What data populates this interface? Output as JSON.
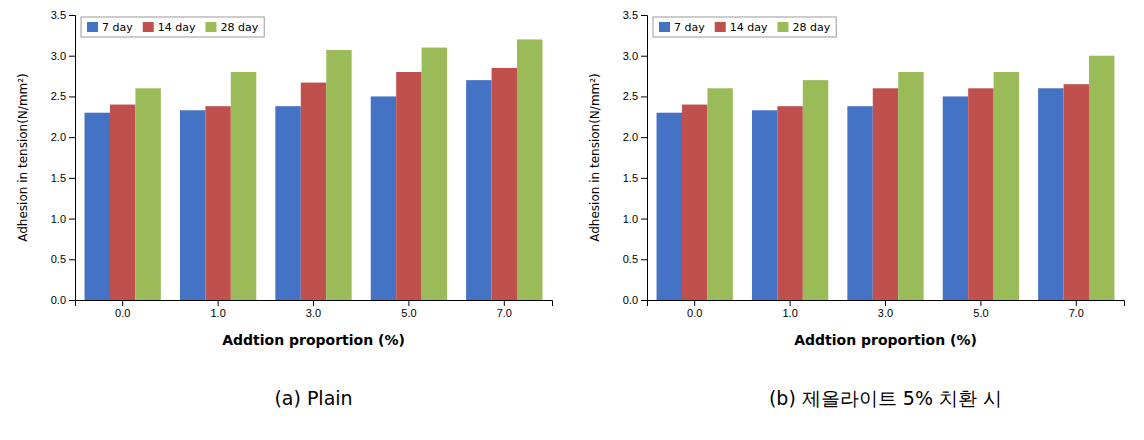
{
  "chart_data": [
    {
      "type": "bar",
      "title": "(a)  Plain",
      "xlabel": "Addtion proportion (%)",
      "ylabel": "Adhesion in tension(N/mm²)",
      "categories": [
        "0.0",
        "1.0",
        "3.0",
        "5.0",
        "7.0"
      ],
      "series": [
        {
          "name": "7 day",
          "color": "#4472c4",
          "values": [
            2.3,
            2.33,
            2.38,
            2.5,
            2.7
          ]
        },
        {
          "name": "14 day",
          "color": "#c0504d",
          "values": [
            2.4,
            2.38,
            2.67,
            2.8,
            2.85
          ]
        },
        {
          "name": "28 day",
          "color": "#9bbb59",
          "values": [
            2.6,
            2.8,
            3.07,
            3.1,
            3.2
          ]
        }
      ],
      "ylim": [
        0.0,
        3.5
      ],
      "yticks": [
        {
          "value": 0,
          "label": "0.0"
        },
        {
          "value": 0.5,
          "label": "0.5"
        },
        {
          "value": 1,
          "label": "1.0"
        },
        {
          "value": 1.5,
          "label": "1.5"
        },
        {
          "value": 2,
          "label": "2.0"
        },
        {
          "value": 2.5,
          "label": "2.5"
        },
        {
          "value": 3,
          "label": "3.0"
        },
        {
          "value": 3.5,
          "label": "3.5"
        }
      ],
      "grid": false,
      "legend": "upper left"
    },
    {
      "type": "bar",
      "title": "(b)  제올라이트 5%  치환  시",
      "xlabel": "Addtion proportion (%)",
      "ylabel": "Adhesion in tension(N/mm²)",
      "categories": [
        "0.0",
        "1.0",
        "3.0",
        "5.0",
        "7.0"
      ],
      "series": [
        {
          "name": "7 day",
          "color": "#4472c4",
          "values": [
            2.3,
            2.33,
            2.38,
            2.5,
            2.6
          ]
        },
        {
          "name": "14 day",
          "color": "#c0504d",
          "values": [
            2.4,
            2.38,
            2.6,
            2.6,
            2.65
          ]
        },
        {
          "name": "28 day",
          "color": "#9bbb59",
          "values": [
            2.6,
            2.7,
            2.8,
            2.8,
            3.0
          ]
        }
      ],
      "ylim": [
        0.0,
        3.5
      ],
      "yticks": [
        {
          "value": 0,
          "label": "0.0"
        },
        {
          "value": 0.5,
          "label": "0.5"
        },
        {
          "value": 1,
          "label": "1.0"
        },
        {
          "value": 1.5,
          "label": "1.5"
        },
        {
          "value": 2,
          "label": "2.0"
        },
        {
          "value": 2.5,
          "label": "2.5"
        },
        {
          "value": 3,
          "label": "3.0"
        },
        {
          "value": 3.5,
          "label": "3.5"
        }
      ],
      "grid": false,
      "legend": "upper left"
    }
  ]
}
